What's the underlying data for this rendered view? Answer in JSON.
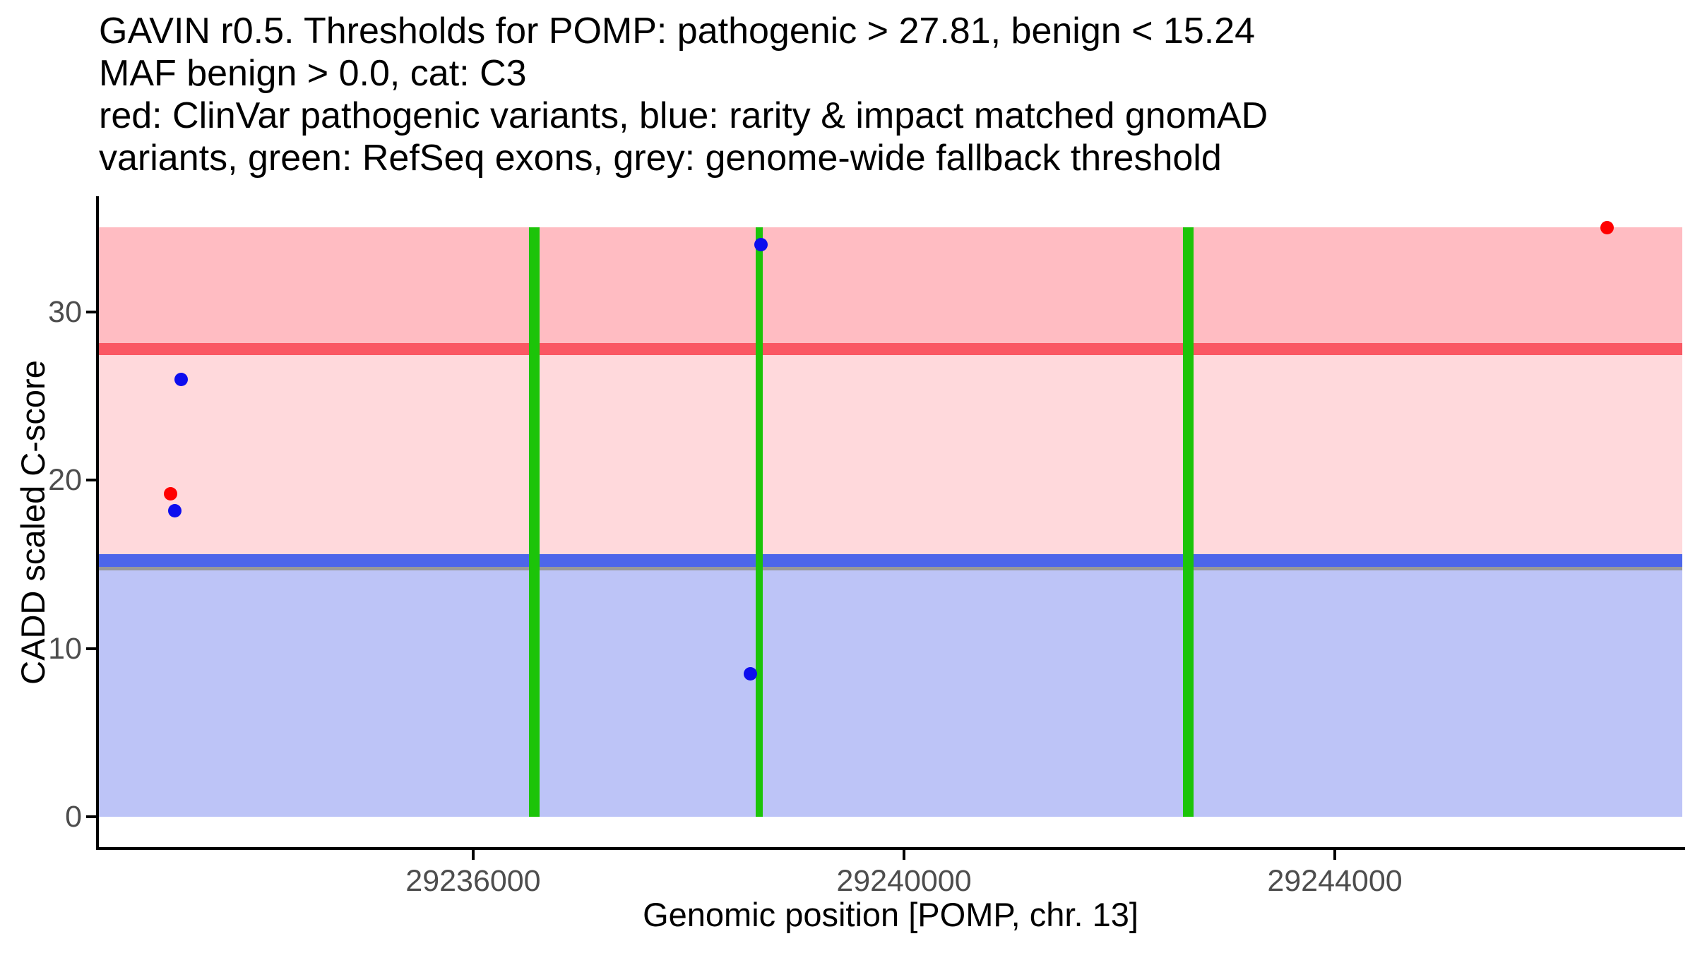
{
  "title_lines": [
    "GAVIN r0.5. Thresholds for POMP: pathogenic > 27.81, benign < 15.24",
    "MAF benign > 0.0, cat: C3",
    "red: ClinVar pathogenic variants, blue: rarity & impact matched gnomAD",
    "variants, green: RefSeq exons, grey: genome-wide fallback threshold"
  ],
  "chart_data": {
    "type": "scatter",
    "title": "GAVIN r0.5. Thresholds for POMP: pathogenic > 27.81, benign < 15.24 MAF benign > 0.0, cat: C3",
    "xlabel": "Genomic position [POMP, chr. 13]",
    "ylabel": "CADD scaled C-score",
    "xlim": [
      29232525,
      29247226
    ],
    "ylim": [
      -1.8,
      36.8
    ],
    "x_ticks": [
      {
        "value": 29236000,
        "label": "29236000"
      },
      {
        "value": 29240000,
        "label": "29240000"
      },
      {
        "value": 29244000,
        "label": "29244000"
      }
    ],
    "y_ticks": [
      {
        "value": 0,
        "label": "0"
      },
      {
        "value": 10,
        "label": "10"
      },
      {
        "value": 20,
        "label": "20"
      },
      {
        "value": 30,
        "label": "30"
      }
    ],
    "thresholds": {
      "pathogenic_gt": 27.81,
      "benign_lt": 15.24,
      "maf_benign_gt": 0.0,
      "category": "C3",
      "genome_wide_fallback": 15.0
    },
    "regions": [
      {
        "slug": "benign",
        "from": 0,
        "to": 15.24,
        "color": "#bdc4f7"
      },
      {
        "slug": "vus",
        "from": 15.24,
        "to": 27.81,
        "color": "#ffd9dc"
      },
      {
        "slug": "pathogenic",
        "from": 27.81,
        "to": 35.05,
        "color": "#ffbcc2"
      }
    ],
    "hlines": [
      {
        "slug": "genome-wide-fallback-threshold-line",
        "y": 15.0,
        "color": "#999999",
        "thickness_px": 16
      },
      {
        "slug": "benign-threshold-line",
        "y": 15.24,
        "color": "#4d66ea",
        "thickness_px": 18
      },
      {
        "slug": "pathogenic-threshold-line",
        "y": 27.81,
        "color": "#fa5763",
        "thickness_px": 17
      }
    ],
    "vlines": [
      {
        "slug": "refseq-exon-line",
        "x": 29236570,
        "color": "#1cc409",
        "thickness_px": 15,
        "from": 0,
        "to": 35.05
      },
      {
        "slug": "refseq-exon-line",
        "x": 29238655,
        "color": "#1cc409",
        "thickness_px": 10,
        "from": 0,
        "to": 35.05
      },
      {
        "slug": "refseq-exon-line",
        "x": 29242640,
        "color": "#1cc409",
        "thickness_px": 15,
        "from": 0,
        "to": 35.05
      }
    ],
    "series": [
      {
        "name": "ClinVar pathogenic variants",
        "slug": "clinvar-pathogenic-variant",
        "color": "#ff0000",
        "points": [
          {
            "x": 29233190,
            "y": 19.2
          },
          {
            "x": 29246530,
            "y": 35.0
          }
        ]
      },
      {
        "name": "rarity & impact matched gnomAD variants",
        "slug": "gnomad-matched-variant",
        "color": "#0d0dee",
        "points": [
          {
            "x": 29233290,
            "y": 26.0
          },
          {
            "x": 29233230,
            "y": 18.2
          },
          {
            "x": 29238675,
            "y": 34.0
          },
          {
            "x": 29238575,
            "y": 8.5
          }
        ]
      }
    ],
    "point_radius_px": 9.5,
    "axis_color": "#000000",
    "tick_color": "#4d4d4d",
    "legend_position": "none",
    "grid": false
  }
}
